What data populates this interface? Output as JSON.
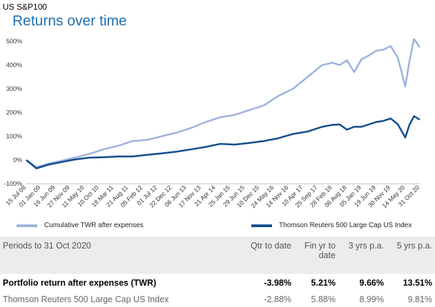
{
  "header": {
    "top_label": "US S&P100",
    "title": "Returns over time"
  },
  "chart_data": {
    "type": "line",
    "ylim": [
      -100,
      500
    ],
    "y_ticks": [
      -100,
      0,
      100,
      200,
      300,
      400,
      500
    ],
    "y_tick_labels": [
      "-100%",
      "0%",
      "100%",
      "200%",
      "300%",
      "400%",
      "500%"
    ],
    "x_tick_labels": [
      "15 Jul 08",
      "01 Jan 09",
      "16 Jun 09",
      "27 Nov 09",
      "11 May 10",
      "10 Oct 10",
      "18 Mar 11",
      "21 Aug 11",
      "05 Feb 12",
      "01 Jul 12",
      "22 Dec 12",
      "06 Jun 13",
      "17 Nov 13",
      "21 Apr 14",
      "25 Jan 15",
      "29 Jun 15",
      "10 Dec 15",
      "24 May 16",
      "14 Nov 16",
      "10 Apr 17",
      "25 Sep 17",
      "28 Feb 18",
      "06 Aug 18",
      "05 Jan 19",
      "19 Jun 19",
      "30 Nov 19",
      "14 May 20",
      "31 Oct 20"
    ],
    "series": [
      {
        "name": "Cumulative TWR after expenses",
        "color": "#9fb3dc",
        "x": [
          0,
          0.7,
          1.5,
          2.3,
          3.3,
          4.3,
          5.3,
          6.3,
          7.3,
          8.3,
          9.3,
          10.3,
          11.3,
          12.3,
          13.3,
          14.3,
          15.3,
          16.3,
          17.3,
          18.3,
          19.3,
          20.3,
          21,
          21.5,
          22,
          22.5,
          23,
          23.5,
          24,
          24.5,
          25,
          25.5,
          26,
          26.3,
          26.6,
          27
        ],
        "values": [
          0,
          -30,
          -15,
          -5,
          10,
          25,
          45,
          60,
          80,
          85,
          100,
          115,
          135,
          160,
          180,
          190,
          210,
          230,
          270,
          300,
          350,
          400,
          410,
          400,
          420,
          370,
          425,
          440,
          460,
          465,
          480,
          430,
          310,
          420,
          510,
          475
        ]
      },
      {
        "name": "Thomson Reuters 500 Large Cap US Index",
        "color": "#154f8c",
        "x": [
          0,
          0.7,
          1.5,
          2.3,
          3.3,
          4.3,
          5.3,
          6.3,
          7.3,
          8.3,
          9.3,
          10.3,
          11.3,
          12.3,
          13.3,
          14.3,
          15.3,
          16.3,
          17.3,
          18.3,
          19.3,
          20.3,
          21,
          21.5,
          22,
          22.5,
          23,
          23.5,
          24,
          24.5,
          25,
          25.5,
          26,
          26.3,
          26.6,
          27
        ],
        "values": [
          0,
          -35,
          -20,
          -10,
          2,
          10,
          12,
          15,
          15,
          22,
          28,
          35,
          45,
          55,
          68,
          65,
          72,
          80,
          92,
          110,
          120,
          140,
          148,
          150,
          128,
          140,
          140,
          150,
          160,
          165,
          175,
          150,
          95,
          150,
          185,
          170
        ]
      }
    ]
  },
  "table": {
    "headers": [
      "Periods to 31 Oct 2020",
      "Qtr to date",
      "Fin yr to date",
      "3 yrs p.a.",
      "5 yrs p.a."
    ],
    "rows": [
      [
        "Portfolio return after expenses (TWR)",
        "-3.98%",
        "5.21%",
        "9.66%",
        "13.51%"
      ],
      [
        "Thomson Reuters 500 Large Cap US Index",
        "-2.88%",
        "5.88%",
        "8.99%",
        "9.81%"
      ]
    ]
  }
}
